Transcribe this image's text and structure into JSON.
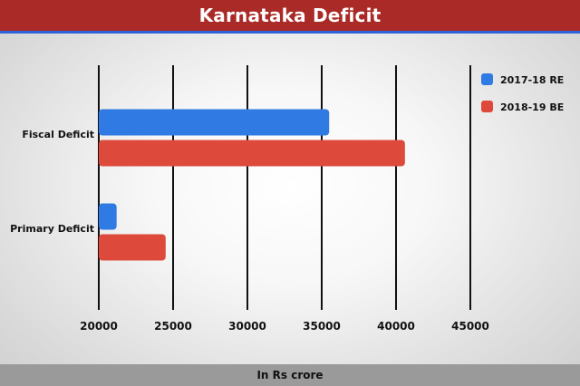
{
  "header": {
    "title": "Karnataka Deficit"
  },
  "footer": {
    "unit_label": "In Rs crore"
  },
  "colors": {
    "header_bg": "#a92a26",
    "header_underline": "#2f62d8",
    "series_2017_18_re": "#2f7be3",
    "series_2018_19_be": "#dd4a3b",
    "footer_bg": "#9a9a9a"
  },
  "chart_data": {
    "type": "bar",
    "orientation": "horizontal",
    "title": "Karnataka Deficit",
    "xlabel": "In Rs crore",
    "ylabel": "",
    "xlim": [
      20000,
      45000
    ],
    "xticks": [
      20000,
      25000,
      30000,
      35000,
      40000,
      45000
    ],
    "grid": "vertical",
    "legend_position": "top-right",
    "categories": [
      "Fiscal Deficit",
      "Primary Deficit"
    ],
    "series": [
      {
        "name": "2017-18 RE",
        "color": "#2f7be3",
        "values": [
          35500,
          21200
        ]
      },
      {
        "name": "2018-19 BE",
        "color": "#dd4a3b",
        "values": [
          40600,
          24500
        ]
      }
    ]
  }
}
